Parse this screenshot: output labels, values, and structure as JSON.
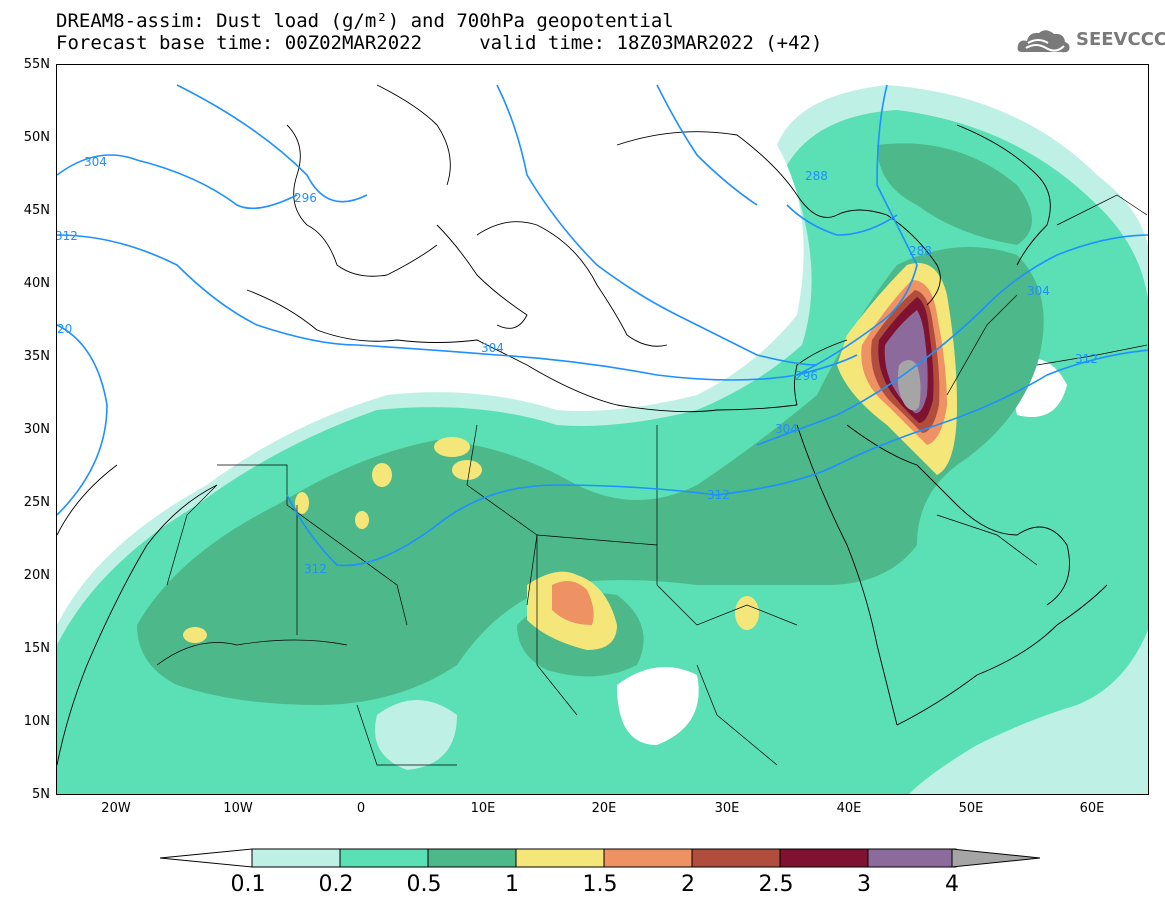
{
  "header": {
    "title_line1": "DREAM8-assim: Dust load (g/m²) and 700hPa geopotential",
    "title_line2": "Forecast base time: 00Z02MAR2022     valid time: 18Z03MAR2022 (+42)",
    "logo_text": "SEEVCCC"
  },
  "map": {
    "lat_labels": [
      "55N",
      "50N",
      "45N",
      "40N",
      "35N",
      "30N",
      "25N",
      "20N",
      "15N",
      "10N",
      "5N"
    ],
    "lon_labels": [
      "20W",
      "10W",
      "0",
      "10E",
      "20E",
      "30E",
      "40E",
      "50E",
      "60E"
    ],
    "contour_labels": [
      "304",
      "296",
      "312",
      "20",
      "304",
      "288",
      "288",
      "304",
      "296",
      "304",
      "312",
      "312",
      "312"
    ]
  },
  "legend": {
    "levels": [
      "0.1",
      "0.2",
      "0.5",
      "1",
      "1.5",
      "2",
      "2.5",
      "3",
      "4"
    ],
    "colors": [
      "#bff0e6",
      "#5ae0b4",
      "#4db88a",
      "#f5e67a",
      "#ee9163",
      "#b04d3c",
      "#7e1230",
      "#8c6b9c",
      "#a5a5a5"
    ]
  }
}
